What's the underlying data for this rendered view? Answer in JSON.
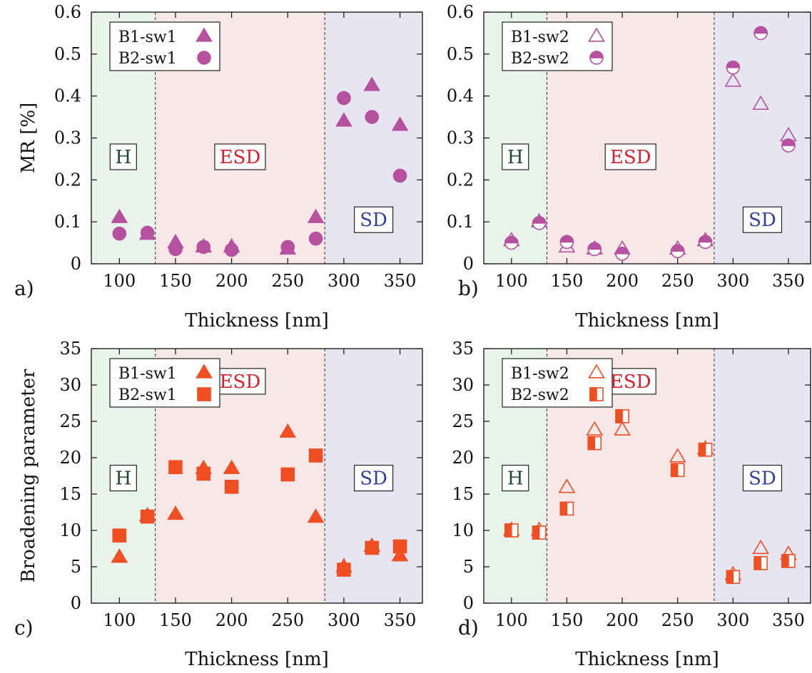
{
  "colors": {
    "magenta": "#b5519f",
    "orange": "#f04e23",
    "region_H": "#e8f3ec",
    "region_ESD": "#f8e7e7",
    "region_SD": "#e6e6f2",
    "text_H": "#1e4a2e",
    "text_ESD": "#d8202d",
    "text_SD": "#2f3f9a"
  },
  "chart_data": [
    {
      "id": "a",
      "type": "scatter",
      "panel_label": "a)",
      "xlabel": "Thickness [nm]",
      "ylabel": "MR [%]",
      "xlim": [
        75,
        370
      ],
      "ylim": [
        0,
        0.6
      ],
      "xticks": [
        100,
        150,
        200,
        250,
        300,
        350
      ],
      "yticks": [
        0,
        0.1,
        0.2,
        0.3,
        0.4,
        0.5,
        0.6
      ],
      "ytick_labels": [
        "0",
        "0.1",
        "0.2",
        "0.3",
        "0.4",
        "0.5",
        "0.6"
      ],
      "color": "magenta",
      "regions": [
        {
          "label": "H",
          "x0": 75,
          "x1": 132,
          "color": "region_H",
          "text_color": "text_H",
          "label_y": 0.255
        },
        {
          "label": "ESD",
          "x0": 132,
          "x1": 283,
          "color": "region_ESD",
          "text_color": "text_ESD",
          "label_y": 0.255
        },
        {
          "label": "SD",
          "x0": 283,
          "x1": 370,
          "color": "region_SD",
          "text_color": "text_SD",
          "label_y": 0.105
        }
      ],
      "legend": [
        {
          "name": "B1-sw1",
          "marker": "triangle-filled"
        },
        {
          "name": "B2-sw1",
          "marker": "circle-filled"
        }
      ],
      "series": [
        {
          "name": "B1-sw1",
          "marker": "triangle-filled",
          "x": [
            100,
            125,
            150,
            175,
            200,
            250,
            275,
            300,
            325,
            350
          ],
          "y": [
            0.11,
            0.07,
            0.05,
            0.04,
            0.04,
            0.035,
            0.11,
            0.34,
            0.425,
            0.33
          ]
        },
        {
          "name": "B2-sw1",
          "marker": "circle-filled",
          "x": [
            100,
            125,
            150,
            175,
            200,
            250,
            275,
            300,
            325,
            350
          ],
          "y": [
            0.072,
            0.074,
            0.035,
            0.04,
            0.033,
            0.04,
            0.06,
            0.395,
            0.35,
            0.21
          ]
        }
      ]
    },
    {
      "id": "b",
      "type": "scatter",
      "panel_label": "b)",
      "xlabel": "Thickness [nm]",
      "ylabel": "",
      "xlim": [
        75,
        370
      ],
      "ylim": [
        0,
        0.6
      ],
      "xticks": [
        100,
        150,
        200,
        250,
        300,
        350
      ],
      "yticks": [
        0,
        0.1,
        0.2,
        0.3,
        0.4,
        0.5,
        0.6
      ],
      "ytick_labels": [
        "0",
        "0.1",
        "0.2",
        "0.3",
        "0.4",
        "0.5",
        "0.6"
      ],
      "color": "magenta",
      "regions": [
        {
          "label": "H",
          "x0": 75,
          "x1": 132,
          "color": "region_H",
          "text_color": "text_H",
          "label_y": 0.255
        },
        {
          "label": "ESD",
          "x0": 132,
          "x1": 283,
          "color": "region_ESD",
          "text_color": "text_ESD",
          "label_y": 0.255
        },
        {
          "label": "SD",
          "x0": 283,
          "x1": 370,
          "color": "region_SD",
          "text_color": "text_SD",
          "label_y": 0.105
        }
      ],
      "legend": [
        {
          "name": "B1-sw2",
          "marker": "triangle-open"
        },
        {
          "name": "B2-sw2",
          "marker": "circle-half"
        }
      ],
      "series": [
        {
          "name": "B1-sw2",
          "marker": "triangle-open",
          "x": [
            100,
            125,
            150,
            175,
            200,
            250,
            275,
            300,
            325,
            350
          ],
          "y": [
            0.055,
            0.1,
            0.04,
            0.035,
            0.035,
            0.035,
            0.055,
            0.435,
            0.38,
            0.305
          ]
        },
        {
          "name": "B2-sw2",
          "marker": "circle-half",
          "x": [
            100,
            125,
            150,
            175,
            200,
            250,
            275,
            300,
            325,
            350
          ],
          "y": [
            0.05,
            0.097,
            0.052,
            0.035,
            0.024,
            0.03,
            0.052,
            0.468,
            0.55,
            0.282
          ]
        }
      ]
    },
    {
      "id": "c",
      "type": "scatter",
      "panel_label": "c)",
      "xlabel": "Thickness [nm]",
      "ylabel": "Broadening parameter",
      "xlim": [
        75,
        370
      ],
      "ylim": [
        0,
        35
      ],
      "xticks": [
        100,
        150,
        200,
        250,
        300,
        350
      ],
      "yticks": [
        0,
        5,
        10,
        15,
        20,
        25,
        30,
        35
      ],
      "ytick_labels": [
        "0",
        "5",
        "10",
        "15",
        "20",
        "25",
        "30",
        "35"
      ],
      "color": "orange",
      "regions": [
        {
          "label": "H",
          "x0": 75,
          "x1": 132,
          "color": "region_H",
          "text_color": "text_H",
          "label_y": 17.2
        },
        {
          "label": "ESD",
          "x0": 132,
          "x1": 283,
          "color": "region_ESD",
          "text_color": "text_ESD",
          "label_y": 30.5
        },
        {
          "label": "SD",
          "x0": 283,
          "x1": 370,
          "color": "region_SD",
          "text_color": "text_SD",
          "label_y": 17.2
        }
      ],
      "legend": [
        {
          "name": "B1-sw1",
          "marker": "triangle-filled"
        },
        {
          "name": "B2-sw1",
          "marker": "square-filled"
        }
      ],
      "series": [
        {
          "name": "B1-sw1",
          "marker": "triangle-filled",
          "x": [
            100,
            125,
            150,
            175,
            200,
            250,
            275,
            300,
            325,
            350
          ],
          "y": [
            6.3,
            12.0,
            12.2,
            18.5,
            18.5,
            23.5,
            11.8,
            5.0,
            7.8,
            6.5
          ]
        },
        {
          "name": "B2-sw1",
          "marker": "square-filled",
          "x": [
            100,
            125,
            150,
            175,
            200,
            250,
            275,
            300,
            325,
            350
          ],
          "y": [
            9.3,
            11.9,
            18.7,
            17.8,
            16.0,
            17.7,
            20.3,
            4.6,
            7.6,
            7.8
          ]
        }
      ]
    },
    {
      "id": "d",
      "type": "scatter",
      "panel_label": "d)",
      "xlabel": "Thickness [nm]",
      "ylabel": "",
      "xlim": [
        75,
        370
      ],
      "ylim": [
        0,
        35
      ],
      "xticks": [
        100,
        150,
        200,
        250,
        300,
        350
      ],
      "yticks": [
        0,
        5,
        10,
        15,
        20,
        25,
        30,
        35
      ],
      "ytick_labels": [
        "0",
        "5",
        "10",
        "15",
        "20",
        "25",
        "30",
        "35"
      ],
      "color": "orange",
      "regions": [
        {
          "label": "H",
          "x0": 75,
          "x1": 132,
          "color": "region_H",
          "text_color": "text_H",
          "label_y": 17.2
        },
        {
          "label": "ESD",
          "x0": 132,
          "x1": 283,
          "color": "region_ESD",
          "text_color": "text_ESD",
          "label_y": 30.5
        },
        {
          "label": "SD",
          "x0": 283,
          "x1": 370,
          "color": "region_SD",
          "text_color": "text_SD",
          "label_y": 17.2
        }
      ],
      "legend": [
        {
          "name": "B1-sw2",
          "marker": "triangle-open"
        },
        {
          "name": "B2-sw2",
          "marker": "square-half"
        }
      ],
      "series": [
        {
          "name": "B1-sw2",
          "marker": "triangle-open",
          "x": [
            100,
            125,
            150,
            175,
            200,
            250,
            275,
            300,
            325,
            350
          ],
          "y": [
            10.0,
            10.0,
            15.9,
            23.8,
            23.8,
            20.1,
            21.2,
            3.9,
            7.5,
            6.7
          ]
        },
        {
          "name": "B2-sw2",
          "marker": "square-half",
          "x": [
            100,
            125,
            150,
            175,
            200,
            250,
            275,
            300,
            325,
            350
          ],
          "y": [
            10.0,
            9.7,
            13.0,
            22.0,
            25.7,
            18.3,
            21.1,
            3.6,
            5.5,
            5.8
          ]
        }
      ]
    }
  ]
}
